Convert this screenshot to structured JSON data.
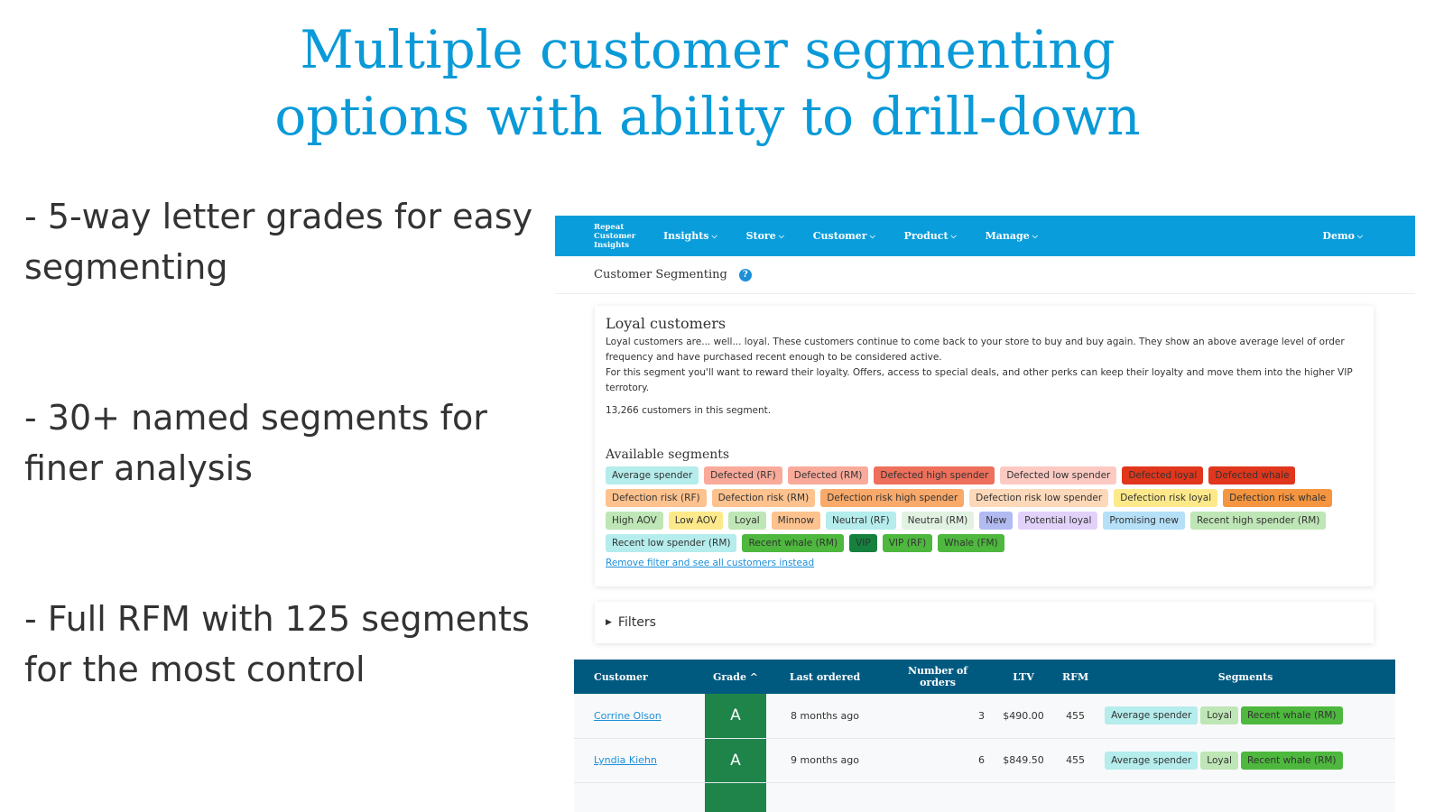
{
  "headline": [
    "Multiple customer segmenting",
    "options with ability to drill-down"
  ],
  "bullets": [
    "- 5-way letter grades for easy segmenting",
    "- 30+ named segments for finer analysis",
    "- Full RFM with 125 segments for the most control"
  ],
  "nav": {
    "logo": [
      "Repeat",
      "Customer",
      "Insights"
    ],
    "items": [
      "Insights",
      "Store",
      "Customer",
      "Product",
      "Manage"
    ],
    "account": "Demo",
    "chevron": "chevron-down-icon"
  },
  "page_title": "Customer Segmenting",
  "help_icon": "?",
  "segment_card": {
    "title": "Loyal customers",
    "description1": "Loyal customers are... well... loyal. These customers continue to come back to your store to buy and buy again. They show an above average level of order frequency and have purchased recent enough to be considered active.",
    "description2": "For this segment you'll want to reward their loyalty. Offers, access to special deals, and other perks can keep their loyalty and move them into the higher VIP terrotory.",
    "count": "13,266 customers in this segment.",
    "available_title": "Available segments",
    "segments": [
      {
        "label": "Average spender",
        "color": "#b5ecec"
      },
      {
        "label": "Defected (RF)",
        "color": "#f9aa9a"
      },
      {
        "label": "Defected (RM)",
        "color": "#f9aa9a"
      },
      {
        "label": "Defected high spender",
        "color": "#ee6f5b"
      },
      {
        "label": "Defected low spender",
        "color": "#fccac2"
      },
      {
        "label": "Defected loyal",
        "color": "#e0361c"
      },
      {
        "label": "Defected whale",
        "color": "#e0361c"
      },
      {
        "label": "Defection risk (RF)",
        "color": "#fdc28e"
      },
      {
        "label": "Defection risk (RM)",
        "color": "#fdc28e"
      },
      {
        "label": "Defection risk high spender",
        "color": "#f9a96a"
      },
      {
        "label": "Defection risk low spender",
        "color": "#fdd9ba"
      },
      {
        "label": "Defection risk loyal",
        "color": "#fde98a"
      },
      {
        "label": "Defection risk whale",
        "color": "#f5953f"
      },
      {
        "label": "High AOV",
        "color": "#bfe6b6"
      },
      {
        "label": "Low AOV",
        "color": "#fde98a"
      },
      {
        "label": "Loyal",
        "color": "#bfe6b6"
      },
      {
        "label": "Minnow",
        "color": "#fdc28e"
      },
      {
        "label": "Neutral (RF)",
        "color": "#b5ecec"
      },
      {
        "label": "Neutral (RM)",
        "color": "#e2f2e2"
      },
      {
        "label": "New",
        "color": "#b2baf2"
      },
      {
        "label": "Potential loyal",
        "color": "#e2d2fa"
      },
      {
        "label": "Promising new",
        "color": "#b5e0f8"
      },
      {
        "label": "Recent high spender (RM)",
        "color": "#bfe6b6"
      },
      {
        "label": "Recent low spender (RM)",
        "color": "#b5ecec"
      },
      {
        "label": "Recent whale (RM)",
        "color": "#4db83d"
      },
      {
        "label": "VIP",
        "color": "#16803e"
      },
      {
        "label": "VIP (RF)",
        "color": "#4db83d"
      },
      {
        "label": "Whale (FM)",
        "color": "#4db83d"
      }
    ],
    "remove_link": "Remove filter and see all customers instead"
  },
  "filters_label": "Filters",
  "table": {
    "columns": [
      "Customer",
      "Grade ^",
      "Last ordered",
      "Number of orders",
      "LTV",
      "RFM",
      "Segments"
    ],
    "rows": [
      {
        "customer": "Corrine Olson",
        "grade": "A",
        "last_ordered": "8 months ago",
        "orders": "3",
        "ltv": "$490.00",
        "rfm": "455",
        "segments": [
          {
            "label": "Average spender",
            "color": "#b5ecec"
          },
          {
            "label": "Loyal",
            "color": "#bfe6b6"
          },
          {
            "label": "Recent whale (RM)",
            "color": "#4db83d"
          }
        ]
      },
      {
        "customer": "Lyndia Kiehn",
        "grade": "A",
        "last_ordered": "9 months ago",
        "orders": "6",
        "ltv": "$849.50",
        "rfm": "455",
        "segments": [
          {
            "label": "Average spender",
            "color": "#b5ecec"
          },
          {
            "label": "Loyal",
            "color": "#bfe6b6"
          },
          {
            "label": "Recent whale (RM)",
            "color": "#4db83d"
          }
        ]
      }
    ]
  },
  "colors": {
    "accent": "#0a9ddc",
    "table_header": "#005a80",
    "grade_a": "#1e8449"
  }
}
